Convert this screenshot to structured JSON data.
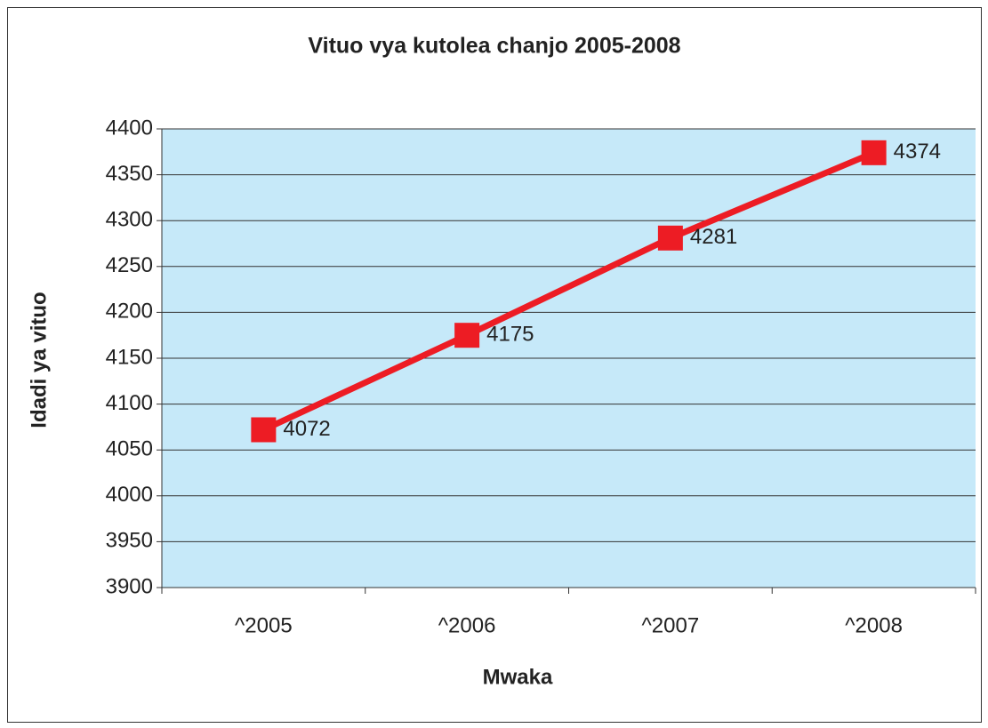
{
  "chart_data": {
    "type": "line",
    "title": "Vituo vya kutolea chanjo 2005-2008",
    "x_label": "Mwaka",
    "y_label": "Idadi ya vituo",
    "categories": [
      "^2005",
      "^2006",
      "^2007",
      "^2008"
    ],
    "values": [
      4072,
      4175,
      4281,
      4374
    ],
    "color": "#ed1c24",
    "ylim": [
      3900,
      4400
    ],
    "yticks": [
      3900,
      3950,
      4000,
      4050,
      4100,
      4150,
      4200,
      4250,
      4300,
      4350,
      4400
    ],
    "grid": true,
    "data_labels": true
  }
}
